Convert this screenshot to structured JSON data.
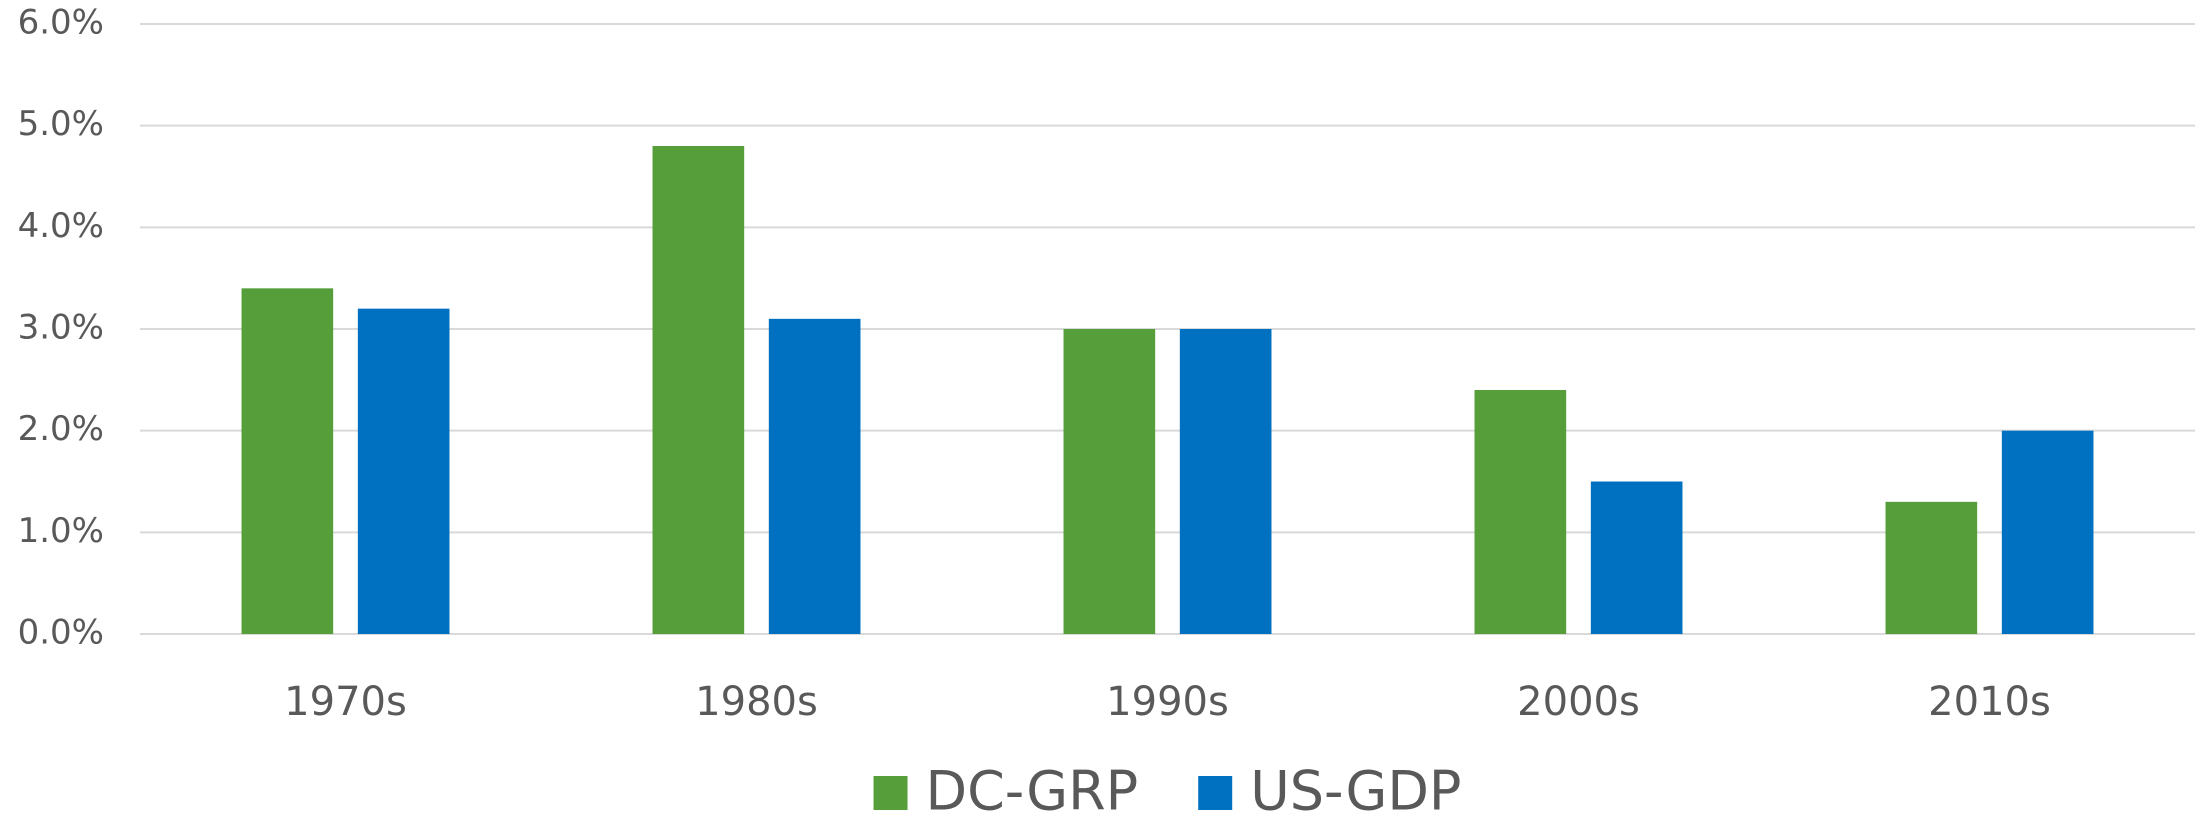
{
  "chart_data": {
    "type": "bar",
    "categories": [
      "1970s",
      "1980s",
      "1990s",
      "2000s",
      "2010s"
    ],
    "series": [
      {
        "name": "DC-GRP",
        "color": "#559e3a",
        "values": [
          3.4,
          4.8,
          3.0,
          2.4,
          1.3
        ]
      },
      {
        "name": "US-GDP",
        "color": "#0070c0",
        "values": [
          3.2,
          3.1,
          3.0,
          1.5,
          2.0
        ]
      }
    ],
    "ylim": [
      0,
      6
    ],
    "yticks": [
      {
        "value": 0,
        "label": "0.0%"
      },
      {
        "value": 1,
        "label": "1.0%"
      },
      {
        "value": 2,
        "label": "2.0%"
      },
      {
        "value": 3,
        "label": "3.0%"
      },
      {
        "value": 4,
        "label": "4.0%"
      },
      {
        "value": 5,
        "label": "5.0%"
      },
      {
        "value": 6,
        "label": "6.0%"
      }
    ],
    "grid": true,
    "legend": "bottom"
  }
}
